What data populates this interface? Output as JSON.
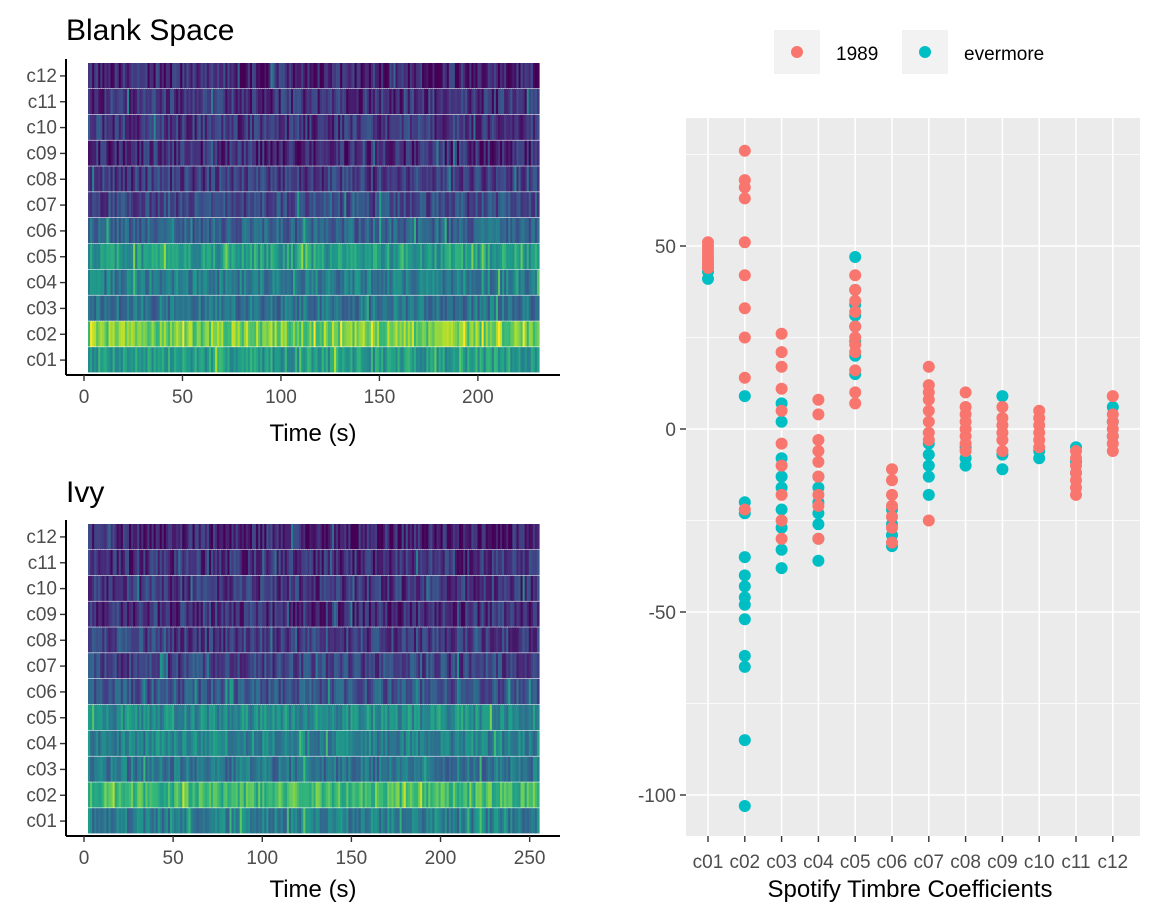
{
  "chart_data": [
    {
      "type": "heatmap",
      "title": "Blank Space",
      "xlabel": "Time (s)",
      "ylabel": "",
      "xlim": [
        0,
        229
      ],
      "xticks": [
        0,
        50,
        100,
        150,
        200
      ],
      "rows": [
        "c01",
        "c02",
        "c03",
        "c04",
        "c05",
        "c06",
        "c07",
        "c08",
        "c09",
        "c10",
        "c11",
        "c12"
      ],
      "row_mean_level": [
        0.55,
        0.78,
        0.38,
        0.42,
        0.55,
        0.32,
        0.22,
        0.18,
        0.12,
        0.16,
        0.14,
        0.1
      ],
      "colorscale": "viridis"
    },
    {
      "type": "heatmap",
      "title": "Ivy",
      "xlabel": "Time (s)",
      "ylabel": "",
      "xlim": [
        0,
        253
      ],
      "xticks": [
        0,
        50,
        100,
        150,
        200,
        250
      ],
      "rows": [
        "c01",
        "c02",
        "c03",
        "c04",
        "c05",
        "c06",
        "c07",
        "c08",
        "c09",
        "c10",
        "c11",
        "c12"
      ],
      "row_mean_level": [
        0.42,
        0.68,
        0.38,
        0.44,
        0.48,
        0.26,
        0.2,
        0.18,
        0.14,
        0.16,
        0.14,
        0.1
      ],
      "colorscale": "viridis"
    },
    {
      "type": "scatter",
      "title": "",
      "xlabel": "Spotify Timbre Coefficients",
      "ylabel": "",
      "ylim": [
        -110,
        85
      ],
      "yticks": [
        50,
        0,
        -50,
        -100
      ],
      "categories": [
        "c01",
        "c02",
        "c03",
        "c04",
        "c05",
        "c06",
        "c07",
        "c08",
        "c09",
        "c10",
        "c11",
        "c12"
      ],
      "legend_position": "top",
      "grid": true,
      "series": [
        {
          "name": "1989",
          "color": "#F8766D",
          "points": {
            "c01": [
              44,
              45,
              46,
              47,
              48,
              49,
              50,
              51
            ],
            "c02": [
              76,
              68,
              66,
              63,
              51,
              42,
              33,
              25,
              14,
              -22
            ],
            "c03": [
              26,
              21,
              17,
              11,
              5,
              -4,
              -10,
              -18,
              -25,
              -30
            ],
            "c04": [
              8,
              4,
              -3,
              -6,
              -9,
              -13,
              -18,
              -21,
              -30
            ],
            "c05": [
              42,
              38,
              35,
              32,
              28,
              25,
              23,
              21,
              16,
              10,
              7
            ],
            "c06": [
              -11,
              -14,
              -18,
              -21,
              -24,
              -27,
              -31
            ],
            "c07": [
              17,
              12,
              10,
              8,
              5,
              2,
              -1,
              -3,
              -25
            ],
            "c08": [
              10,
              6,
              4,
              2,
              0,
              -2,
              -4,
              -6
            ],
            "c09": [
              6,
              3,
              1,
              -1,
              -3,
              -6
            ],
            "c10": [
              5,
              3,
              1,
              -1,
              -3,
              -5
            ],
            "c11": [
              -6,
              -8,
              -10,
              -12,
              -14,
              -16,
              -18
            ],
            "c12": [
              9,
              4,
              2,
              0,
              -2,
              -4,
              -6
            ]
          }
        },
        {
          "name": "evermore",
          "color": "#00BFC4",
          "points": {
            "c01": [
              41,
              43,
              45
            ],
            "c02": [
              9,
              -20,
              -23,
              -35,
              -40,
              -43,
              -46,
              -48,
              -52,
              -62,
              -65,
              -85,
              -103
            ],
            "c03": [
              7,
              2,
              -8,
              -13,
              -16,
              -22,
              -27,
              -33,
              -38
            ],
            "c04": [
              -13,
              -16,
              -20,
              -23,
              -26,
              -30,
              -36
            ],
            "c05": [
              47,
              38,
              34,
              31,
              28,
              24,
              20,
              15
            ],
            "c06": [
              -22,
              -26,
              -29,
              -32
            ],
            "c07": [
              -4,
              -7,
              -10,
              -13,
              -18
            ],
            "c08": [
              -5,
              -8,
              -10
            ],
            "c09": [
              9,
              -7,
              -11
            ],
            "c10": [
              -6,
              -8
            ],
            "c11": [
              -5,
              -9,
              -12
            ],
            "c12": [
              6,
              2,
              -2
            ]
          }
        }
      ]
    }
  ]
}
